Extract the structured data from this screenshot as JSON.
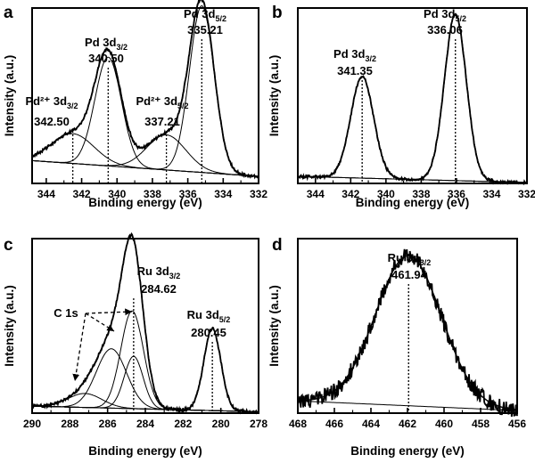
{
  "chart_data": [
    {
      "panel": "a",
      "type": "line",
      "xlabel": "Binding energy (eV)",
      "ylabel": "Intensity (a.u.)",
      "xlim": [
        344.8,
        332
      ],
      "x_reversed": true,
      "xticks": [
        344,
        342,
        340,
        338,
        336,
        334,
        332
      ],
      "peaks": [
        {
          "name": "Pd²⁺ 3d3/2",
          "position": 342.5,
          "height": 0.17,
          "width": 1.2
        },
        {
          "name": "Pd 3d3/2",
          "position": 340.5,
          "height": 0.62,
          "width": 0.75
        },
        {
          "name": "Pd²⁺ 3d5/2",
          "position": 337.21,
          "height": 0.2,
          "width": 1.1
        },
        {
          "name": "Pd 3d5/2",
          "position": 335.21,
          "height": 0.95,
          "width": 0.7
        }
      ],
      "annotations": [
        {
          "label": "Pd 3d",
          "sub": "5/2",
          "value": "335.21",
          "x": 335.21
        },
        {
          "label": "Pd 3d",
          "sub": "3/2",
          "value": "340.50",
          "x": 340.5
        },
        {
          "label": "Pd²⁺ 3d",
          "sub": "3/2",
          "value": "342.50",
          "x": 342.5
        },
        {
          "label": "Pd²⁺ 3d",
          "sub": "5/2",
          "value": "337.21",
          "x": 337.21
        }
      ]
    },
    {
      "panel": "b",
      "type": "line",
      "xlabel": "Binding energy (eV)",
      "ylabel": "Intensity (a.u.)",
      "xlim": [
        345,
        332
      ],
      "x_reversed": true,
      "xticks": [
        344,
        342,
        340,
        338,
        336,
        334,
        332
      ],
      "peaks": [
        {
          "name": "Pd 3d3/2",
          "position": 341.35,
          "height": 0.58,
          "width": 0.65
        },
        {
          "name": "Pd 3d5/2",
          "position": 336.06,
          "height": 0.95,
          "width": 0.62
        }
      ],
      "annotations": [
        {
          "label": "Pd 3d",
          "sub": "3/2",
          "value": "341.35",
          "x": 341.35
        },
        {
          "label": "Pd 3d",
          "sub": "5/2",
          "value": "336.06",
          "x": 336.06
        }
      ]
    },
    {
      "panel": "c",
      "type": "line",
      "xlabel": "Binding energy (eV)",
      "ylabel": "Intensity (a.u.)",
      "xlim": [
        290,
        278
      ],
      "x_reversed": true,
      "xticks": [
        290,
        288,
        286,
        284,
        282,
        280,
        278
      ],
      "peaks": [
        {
          "name": "C 1s",
          "position": 287.2,
          "height": 0.08,
          "width": 0.9
        },
        {
          "name": "C 1s",
          "position": 285.8,
          "height": 0.34,
          "width": 0.8
        },
        {
          "name": "C 1s",
          "position": 284.7,
          "height": 0.56,
          "width": 0.6
        },
        {
          "name": "Ru 3d3/2",
          "position": 284.62,
          "height": 0.3,
          "width": 0.5
        },
        {
          "name": "Ru 3d5/2",
          "position": 280.45,
          "height": 0.47,
          "width": 0.45
        }
      ],
      "annotations": [
        {
          "label": "Ru 3d",
          "sub": "3/2",
          "value": "284.62",
          "x": 284.62
        },
        {
          "label": "Ru 3d",
          "sub": "5/2",
          "value": "280.45",
          "x": 280.45
        },
        {
          "label": "C 1s",
          "sub": "",
          "value": "",
          "x": 286.0
        }
      ]
    },
    {
      "panel": "d",
      "type": "line",
      "xlabel": "Binding energy (eV)",
      "ylabel": "Intensity (a.u.)",
      "xlim": [
        468,
        456
      ],
      "x_reversed": true,
      "xticks": [
        468,
        466,
        464,
        462,
        460,
        458,
        456
      ],
      "peaks": [
        {
          "name": "Ru 3p3/2",
          "position": 461.94,
          "height": 0.86,
          "width": 1.8
        }
      ],
      "annotations": [
        {
          "label": "Ru 3p",
          "sub": "3/2",
          "value": "461.94",
          "x": 461.94
        }
      ]
    }
  ]
}
